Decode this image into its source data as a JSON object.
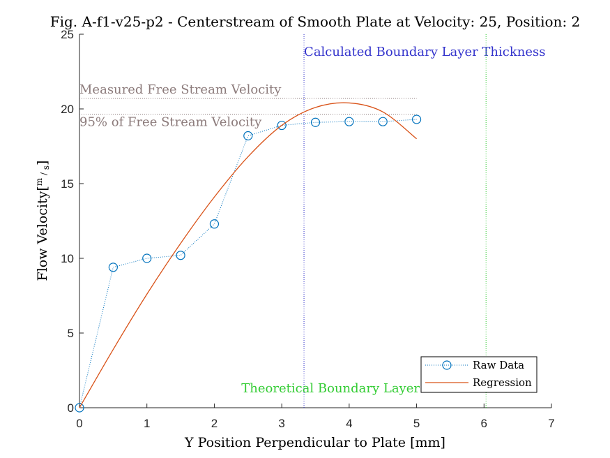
{
  "chart_data": {
    "type": "line",
    "title": "Fig. A-f1-v25-p2 - Centerstream of Smooth Plate at Velocity: 25, Position: 2",
    "xlabel": "Y Position Perpendicular to Plate [mm]",
    "ylabel_main": "Flow Velocity",
    "ylabel_unit_num": "m",
    "ylabel_unit_den": "s",
    "xlim": [
      0,
      7
    ],
    "ylim": [
      0,
      25
    ],
    "xticks": [
      "0",
      "1",
      "2",
      "3",
      "4",
      "5",
      "6",
      "7"
    ],
    "yticks": [
      "0",
      "5",
      "10",
      "15",
      "20",
      "25"
    ],
    "grid": false,
    "legend_position": "bottom-right",
    "series": [
      {
        "name": "Raw Data",
        "color": "#0072BD",
        "style": "dotted-circle-markers",
        "x": [
          0,
          0.5,
          1.0,
          1.5,
          2.0,
          2.5,
          3.0,
          3.5,
          4.0,
          4.5,
          5.0
        ],
        "y": [
          0,
          9.4,
          10.0,
          10.2,
          12.3,
          18.2,
          18.9,
          19.1,
          19.15,
          19.15,
          19.3
        ]
      },
      {
        "name": "Regression",
        "color": "#D95319",
        "style": "solid",
        "x": [
          0,
          0.5,
          1.0,
          1.5,
          2.0,
          2.5,
          3.0,
          3.5,
          4.0,
          4.5,
          5.0
        ],
        "y": [
          0,
          3.9,
          7.6,
          11.0,
          14.1,
          16.8,
          18.9,
          20.1,
          20.4,
          19.8,
          18.0
        ]
      }
    ],
    "reference_lines": [
      {
        "orientation": "horizontal",
        "value": 20.7,
        "x_end": 5.0,
        "label": "Measured Free Stream Velocity",
        "color": "#8C7B7B"
      },
      {
        "orientation": "horizontal",
        "value": 19.65,
        "x_end": 5.0,
        "label": "95% of Free Stream Velocity",
        "color": "#8C7B7B"
      },
      {
        "orientation": "vertical",
        "value": 3.33,
        "label": "Calculated Boundary Layer Thickness",
        "color": "#3333CC"
      },
      {
        "orientation": "vertical",
        "value": 6.03,
        "label": "Theoretical Boundary Layer",
        "color": "#33CC33"
      }
    ]
  }
}
